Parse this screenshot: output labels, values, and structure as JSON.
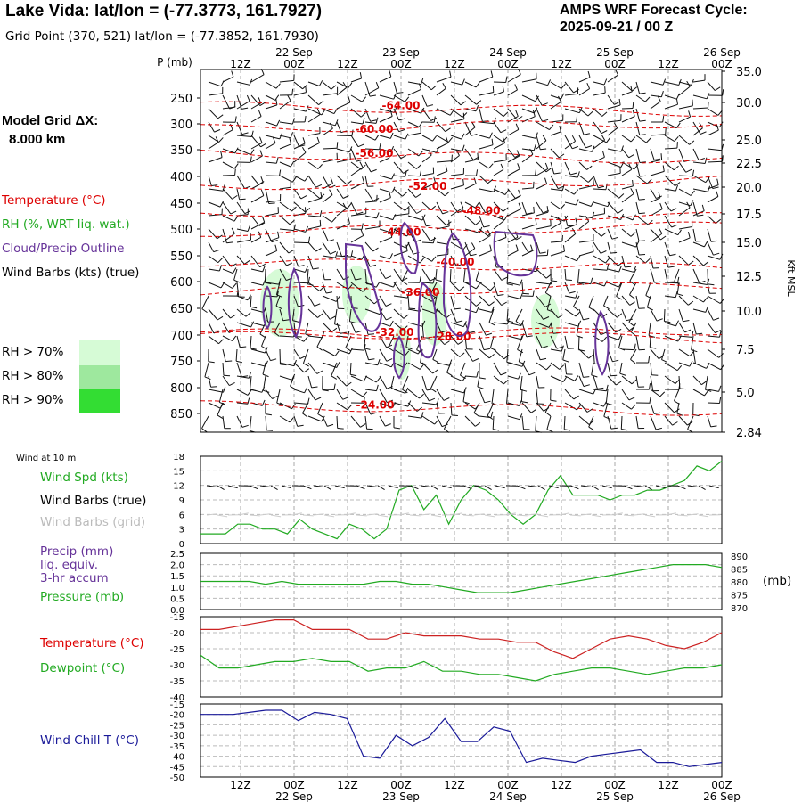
{
  "header": {
    "title": "Lake Vida:  lat/lon = (-77.3773, 161.7927)",
    "subtitle": "Grid Point (370, 521) lat/lon = (-77.3852, 161.7930)",
    "cycle_label": "AMPS WRF Forecast Cycle:",
    "cycle_value": "2025-09-21 / 00  Z"
  },
  "legend": {
    "model_grid": "Model Grid ΔX:",
    "model_grid_value": "8.000 km",
    "temperature": "Temperature (°C)",
    "rh": "RH (%, WRT liq. wat.)",
    "cloud": "Cloud/Precip Outline",
    "wind": "Wind Barbs (kts) (true)",
    "rh70": "RH > 70%",
    "rh80": "RH > 80%",
    "rh90": "RH > 90%",
    "colors": {
      "rh70": "#d6fbd6",
      "rh80": "#9ee89e",
      "rh90": "#33dd33",
      "temp": "#dd0000",
      "cloud": "#663399",
      "green": "#22aa22"
    }
  },
  "panels": {
    "wind10_title": "Wind at 10 m",
    "wind_spd": "Wind Spd (kts)",
    "wind_barbs_true": "Wind Barbs (true)",
    "wind_barbs_grid": "Wind Barbs (grid)",
    "precip1": "Precip (mm)",
    "precip2": "liq. equiv.",
    "precip3": "3-hr accum",
    "pressure": "Pressure (mb)",
    "pressure_unit": "(mb)",
    "temperature": "Temperature (°C)",
    "dewpoint": "Dewpoint (°C)",
    "windchill": "Wind Chill T (°C)"
  },
  "chart_data": {
    "type": "line",
    "time_labels": [
      "12Z",
      "00Z",
      "12Z",
      "00Z",
      "12Z",
      "00Z",
      "12Z",
      "00Z",
      "12Z",
      "00Z"
    ],
    "date_labels": [
      "22 Sep",
      "23 Sep",
      "24 Sep",
      "25 Sep",
      "26 Sep"
    ],
    "cross_section": {
      "ylabel": "P (mb)",
      "pressure_ticks": [
        "250",
        "300",
        "350",
        "400",
        "450",
        "500",
        "550",
        "600",
        "650",
        "700",
        "750",
        "800",
        "850"
      ],
      "height_label": "Kft MSL",
      "height_ticks": [
        "35.0",
        "30.0",
        "25.0",
        "22.5",
        "20.0",
        "17.5",
        "15.0",
        "12.5",
        "10.0",
        "7.5",
        "5.0",
        "2.84"
      ],
      "temperature_contours": [
        {
          "label": "-64.00",
          "p": 265
        },
        {
          "label": "-60.00",
          "p": 310
        },
        {
          "label": "-56.00",
          "p": 357
        },
        {
          "label": "-52.00",
          "p": 418
        },
        {
          "label": "-48.00",
          "p": 465
        },
        {
          "label": "-44.00",
          "p": 506
        },
        {
          "label": "-40.00",
          "p": 562
        },
        {
          "label": "-36.00",
          "p": 620
        },
        {
          "label": "-32.00",
          "p": 695
        },
        {
          "label": "-28.00",
          "p": 703
        },
        {
          "label": "-24.00",
          "p": 834
        }
      ]
    },
    "wind10": {
      "yticks": [
        "18",
        "15",
        "12",
        "9",
        "6",
        "3",
        "0"
      ],
      "ylim": [
        0,
        18
      ],
      "speed_kts": [
        2,
        2,
        2,
        4,
        4,
        3,
        3,
        2,
        5,
        3,
        2,
        1,
        4,
        3,
        1,
        3,
        11,
        12,
        7,
        10,
        4,
        9,
        12,
        11,
        9,
        6,
        4,
        6,
        11,
        14,
        10,
        10,
        10,
        9,
        10,
        10,
        11,
        11,
        12,
        13,
        16,
        15,
        17
      ]
    },
    "pressure": {
      "yticks_left": [
        "2.5",
        "2.0",
        "1.5",
        "1.0",
        "0.5",
        "0.0"
      ],
      "yticks_right": [
        "890",
        "885",
        "880",
        "875",
        "870"
      ],
      "ylim": [
        870,
        890
      ],
      "values_mb": [
        880,
        880,
        880,
        880,
        879,
        880,
        879,
        879,
        879,
        879,
        879,
        880,
        880,
        879,
        879,
        878,
        877,
        876,
        876,
        876,
        877,
        878,
        879,
        880,
        881,
        882,
        883,
        884,
        885,
        886,
        886,
        886,
        885
      ]
    },
    "temperature": {
      "yticks": [
        "-20",
        "-25",
        "-30",
        "-35",
        "-40"
      ],
      "ylim": [
        -40,
        -15
      ],
      "temp_c": [
        -19,
        -19,
        -18,
        -17,
        -16,
        -16,
        -19,
        -19,
        -19,
        -22,
        -22,
        -20,
        -21,
        -21,
        -21,
        -22,
        -22,
        -23,
        -23,
        -26,
        -28,
        -25,
        -22,
        -21,
        -22,
        -24,
        -25,
        -23,
        -20
      ],
      "dewpoint_c": [
        -27,
        -31,
        -31,
        -30,
        -29,
        -29,
        -28,
        -29,
        -29,
        -32,
        -31,
        -31,
        -29,
        -32,
        -32,
        -33,
        -33,
        -34,
        -35,
        -33,
        -32,
        -31,
        -31,
        -32,
        -33,
        -32,
        -31,
        -31,
        -30
      ]
    },
    "windchill": {
      "yticks": [
        "-15",
        "-20",
        "-25",
        "-30",
        "-35",
        "-40",
        "-45",
        "-50"
      ],
      "ylim": [
        -50,
        -15
      ],
      "values_c": [
        -20,
        -20,
        -20,
        -19,
        -18,
        -18,
        -23,
        -19,
        -20,
        -22,
        -40,
        -41,
        -30,
        -35,
        -31,
        -22,
        -33,
        -33,
        -26,
        -28,
        -43,
        -41,
        -42,
        -43,
        -40,
        -39,
        -38,
        -37,
        -43,
        -43,
        -45,
        -44,
        -43
      ]
    }
  }
}
